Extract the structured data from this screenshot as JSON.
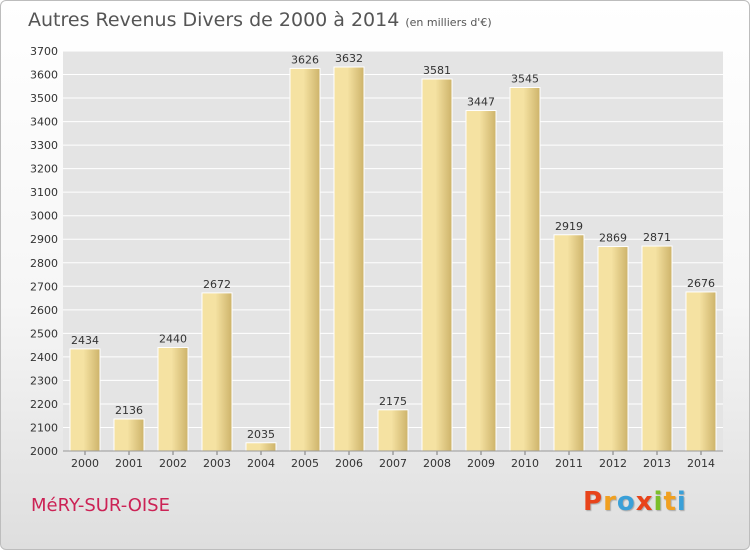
{
  "header": {
    "title": "Autres Revenus Divers de 2000 à 2014",
    "unit": "(en milliers d'€)"
  },
  "footer": {
    "place": "MéRY-SUR-OISE",
    "logo": [
      "P",
      "r",
      "o",
      "x",
      "i",
      "t",
      "i"
    ],
    "logo_colors": [
      "#e8431a",
      "#f0a020",
      "#3aa0d8",
      "#e8431a",
      "#7bbf2a",
      "#f0a020",
      "#3aa0d8"
    ]
  },
  "colors": {
    "bar_light": "#f5e2a2",
    "bar_dark": "#cdb36a",
    "grid": "#ffffff",
    "plot_bg": "#e4e4e4"
  },
  "chart_data": {
    "type": "bar",
    "title": "Autres Revenus Divers de 2000 à 2014",
    "xlabel": "",
    "ylabel": "",
    "ylim": [
      2000,
      3700
    ],
    "yticks": [
      2000,
      2100,
      2200,
      2300,
      2400,
      2500,
      2600,
      2700,
      2800,
      2900,
      3000,
      3100,
      3200,
      3300,
      3400,
      3500,
      3600,
      3700
    ],
    "grid": true,
    "categories": [
      "2000",
      "2001",
      "2002",
      "2003",
      "2004",
      "2005",
      "2006",
      "2007",
      "2008",
      "2009",
      "2010",
      "2011",
      "2012",
      "2013",
      "2014"
    ],
    "values": [
      2434,
      2136,
      2440,
      2672,
      2035,
      3626,
      3632,
      2175,
      3581,
      3447,
      3545,
      2919,
      2869,
      2871,
      2676
    ]
  }
}
